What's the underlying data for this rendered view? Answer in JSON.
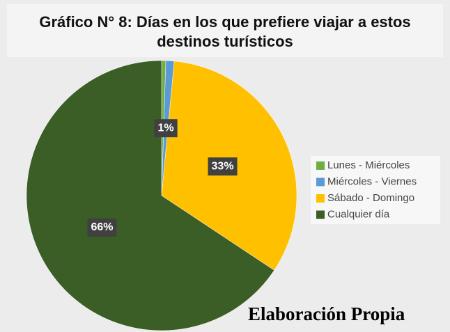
{
  "chart_data": {
    "type": "pie",
    "title": "Gráfico N° 8: Días en los que prefiere viajar a estos destinos turísticos",
    "categories": [
      "Lunes - Miércoles",
      "Miércoles - Viernes",
      "Sábado - Domingo",
      "Cualquier día"
    ],
    "values": [
      0.5,
      1,
      33,
      66
    ],
    "value_labels": [
      null,
      "1%",
      "33%",
      "66%"
    ],
    "colors": [
      "#70ad47",
      "#5b9bd5",
      "#ffc000",
      "#3b5e27"
    ],
    "legend": "right",
    "annotation": "Elaboración Propia"
  }
}
